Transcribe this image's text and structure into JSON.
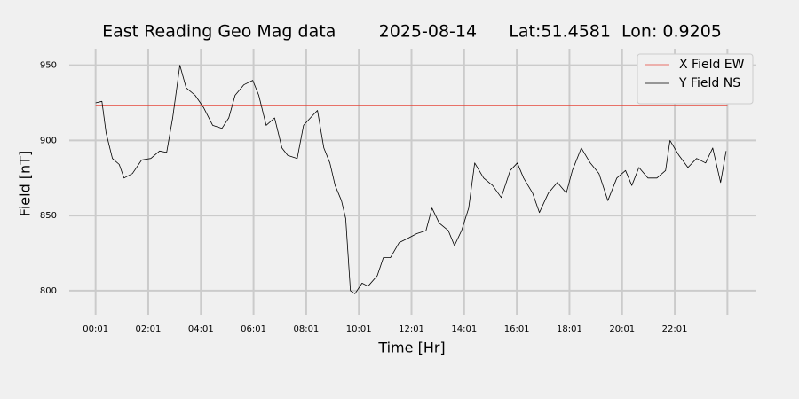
{
  "chart_data": {
    "type": "line",
    "title": "East Reading Geo Mag data        2025-08-14      Lat:51.4581  Lon: 0.9205",
    "xlabel": "Time  [Hr]",
    "ylabel": "Field  [nT]",
    "xlim": [
      -1.0,
      25.1
    ],
    "ylim": [
      784,
      961
    ],
    "xticks": [
      {
        "value": 0,
        "label": "00:01"
      },
      {
        "value": 2,
        "label": "02:01"
      },
      {
        "value": 4,
        "label": "04:01"
      },
      {
        "value": 6,
        "label": "06:01"
      },
      {
        "value": 8,
        "label": "08:01"
      },
      {
        "value": 10,
        "label": "10:01"
      },
      {
        "value": 12,
        "label": "12:01"
      },
      {
        "value": 14,
        "label": "14:01"
      },
      {
        "value": 16,
        "label": "16:01"
      },
      {
        "value": 18,
        "label": "18:01"
      },
      {
        "value": 20,
        "label": "20:01"
      },
      {
        "value": 22,
        "label": "22:01"
      },
      {
        "value": 24,
        "label": null
      }
    ],
    "yticks": [
      800,
      850,
      900,
      950
    ],
    "grid": true,
    "legend": "upper right",
    "series": [
      {
        "name": "X Field EW",
        "color": "#e5473b",
        "x": [
          0,
          24
        ],
        "values": [
          923.4,
          923.4
        ]
      },
      {
        "name": "Y Field NS",
        "color": "#000000",
        "x": [
          0,
          0.24,
          0.4,
          0.64,
          0.9,
          1.08,
          1.4,
          1.75,
          2.1,
          2.43,
          2.7,
          2.93,
          3.2,
          3.44,
          3.78,
          4.1,
          4.45,
          4.8,
          5.06,
          5.3,
          5.63,
          5.97,
          6.2,
          6.48,
          6.8,
          7.08,
          7.3,
          7.66,
          7.9,
          8.16,
          8.43,
          8.67,
          8.9,
          9.1,
          9.34,
          9.5,
          9.68,
          9.85,
          10.12,
          10.35,
          10.7,
          10.93,
          11.2,
          11.53,
          11.87,
          12.2,
          12.55,
          12.78,
          13.05,
          13.4,
          13.63,
          13.9,
          14.17,
          14.4,
          14.74,
          15.08,
          15.41,
          15.75,
          16.02,
          16.26,
          16.6,
          16.86,
          17.2,
          17.54,
          17.88,
          18.11,
          18.45,
          18.79,
          19.12,
          19.46,
          19.8,
          20.13,
          20.37,
          20.64,
          20.98,
          21.32,
          21.65,
          21.82,
          22.16,
          22.5,
          22.83,
          23.17,
          23.44,
          23.74,
          23.95
        ],
        "values": [
          925,
          926,
          905,
          888,
          884,
          875,
          878,
          887,
          888,
          893,
          892,
          915,
          950,
          935,
          930,
          922,
          910,
          908,
          915,
          930,
          937,
          940,
          930,
          910,
          915,
          895,
          890,
          888,
          910,
          915,
          920,
          895,
          885,
          870,
          860,
          848,
          800,
          798,
          805,
          803,
          810,
          822,
          822,
          832,
          835,
          838,
          840,
          855,
          845,
          840,
          830,
          840,
          855,
          885,
          875,
          870,
          862,
          880,
          885,
          875,
          865,
          852,
          865,
          872,
          865,
          880,
          895,
          885,
          878,
          860,
          875,
          880,
          870,
          882,
          875,
          875,
          880,
          900,
          890,
          882,
          888,
          885,
          895,
          872,
          893
        ]
      }
    ]
  }
}
